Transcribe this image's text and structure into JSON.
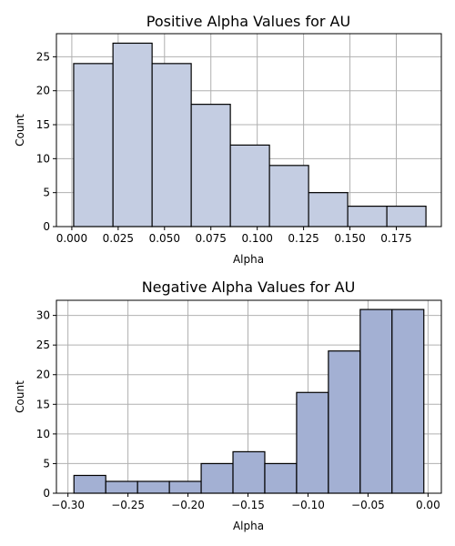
{
  "chart_data": [
    {
      "type": "bar",
      "title": "Positive Alpha Values for AU",
      "xlabel": "Alpha",
      "ylabel": "Count",
      "bin_edges": [
        0.001,
        0.0222,
        0.0433,
        0.0644,
        0.0855,
        0.1066,
        0.1277,
        0.1488,
        0.1699,
        0.191
      ],
      "values": [
        24,
        27,
        24,
        18,
        12,
        9,
        5,
        3,
        3
      ],
      "xlim": [
        -0.0083,
        0.1993
      ],
      "ylim": [
        0,
        28.4
      ],
      "xticks": [
        0.0,
        0.025,
        0.05,
        0.075,
        0.1,
        0.125,
        0.15,
        0.175
      ],
      "xtick_labels": [
        "0.000",
        "0.025",
        "0.050",
        "0.075",
        "0.100",
        "0.125",
        "0.150",
        "0.175"
      ],
      "yticks": [
        0,
        5,
        10,
        15,
        20,
        25
      ],
      "ytick_labels": [
        "0",
        "5",
        "10",
        "15",
        "20",
        "25"
      ],
      "grid": true,
      "bar_color": "#c4cde2"
    },
    {
      "type": "bar",
      "title": "Negative Alpha Values for AU",
      "xlabel": "Alpha",
      "ylabel": "Count",
      "bin_edges": [
        -0.295,
        -0.2685,
        -0.242,
        -0.2155,
        -0.189,
        -0.1625,
        -0.136,
        -0.1095,
        -0.083,
        -0.0565,
        -0.03,
        -0.0035
      ],
      "values": [
        3,
        2,
        2,
        2,
        5,
        7,
        5,
        17,
        24,
        31,
        31
      ],
      "xlim": [
        -0.3096,
        0.0111
      ],
      "ylim": [
        0,
        32.55
      ],
      "xticks": [
        -0.3,
        -0.25,
        -0.2,
        -0.15,
        -0.1,
        -0.05,
        0.0
      ],
      "xtick_labels": [
        "−0.30",
        "−0.25",
        "−0.20",
        "−0.15",
        "−0.10",
        "−0.05",
        "0.00"
      ],
      "yticks": [
        0,
        5,
        10,
        15,
        20,
        25,
        30
      ],
      "ytick_labels": [
        "0",
        "5",
        "10",
        "15",
        "20",
        "25",
        "30"
      ],
      "grid": true,
      "bar_color": "#a3b0d3"
    }
  ]
}
